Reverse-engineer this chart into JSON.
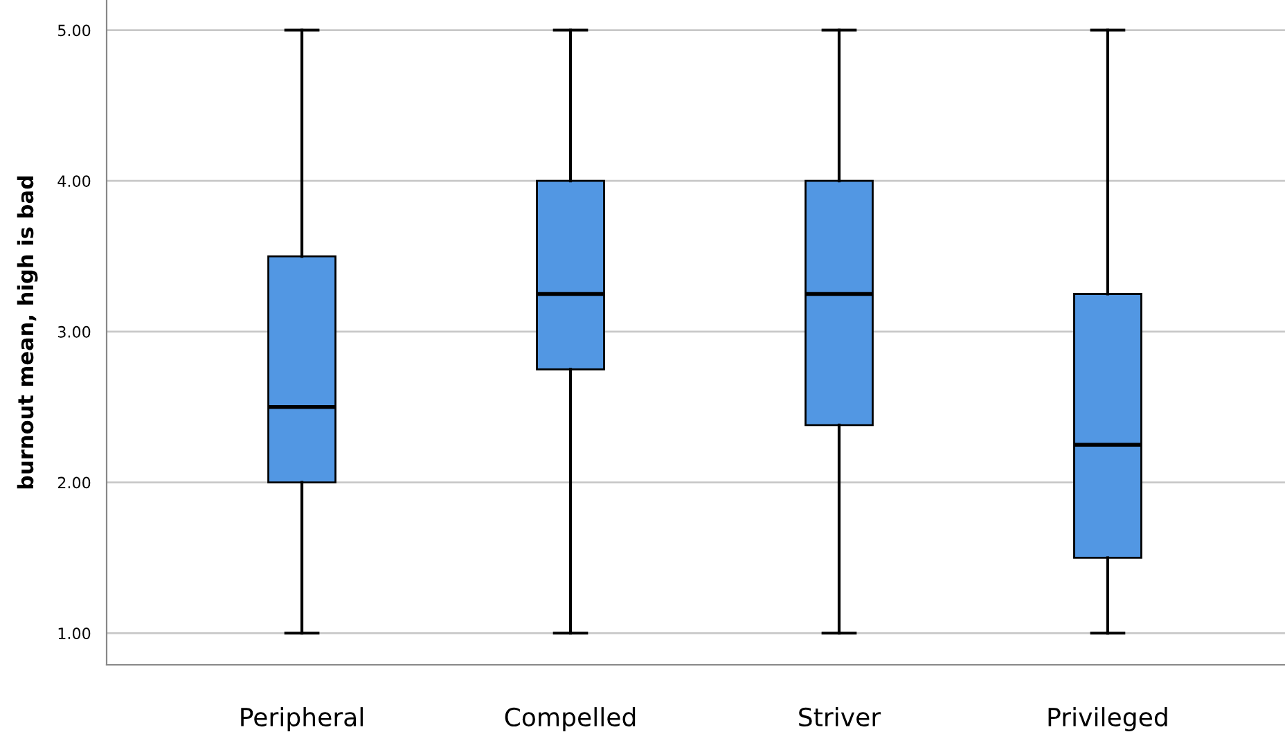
{
  "chart_data": {
    "type": "box",
    "ylabel": "burnout mean, high is bad",
    "categories": [
      "Peripheral",
      "Compelled",
      "Striver",
      "Privileged"
    ],
    "boxes": [
      {
        "low": 1,
        "q1": 2,
        "median": 2.5,
        "q3": 3.5,
        "high": 5
      },
      {
        "low": 1,
        "q1": 2.75,
        "median": 3.25,
        "q3": 4,
        "high": 5
      },
      {
        "low": 1,
        "q1": 2.38,
        "median": 3.25,
        "q3": 4,
        "high": 5
      },
      {
        "low": 1,
        "q1": 1.5,
        "median": 2.25,
        "q3": 3.25,
        "high": 5
      }
    ],
    "color": "#5297e3",
    "ylim": [
      0.79,
      5.2
    ],
    "yticks": [
      {
        "value": 1,
        "label": "1.00"
      },
      {
        "value": 2,
        "label": "2.00"
      },
      {
        "value": 3,
        "label": "3.00"
      },
      {
        "value": 4,
        "label": "4.00"
      },
      {
        "value": 5,
        "label": "5.00"
      }
    ],
    "grid": "y"
  }
}
